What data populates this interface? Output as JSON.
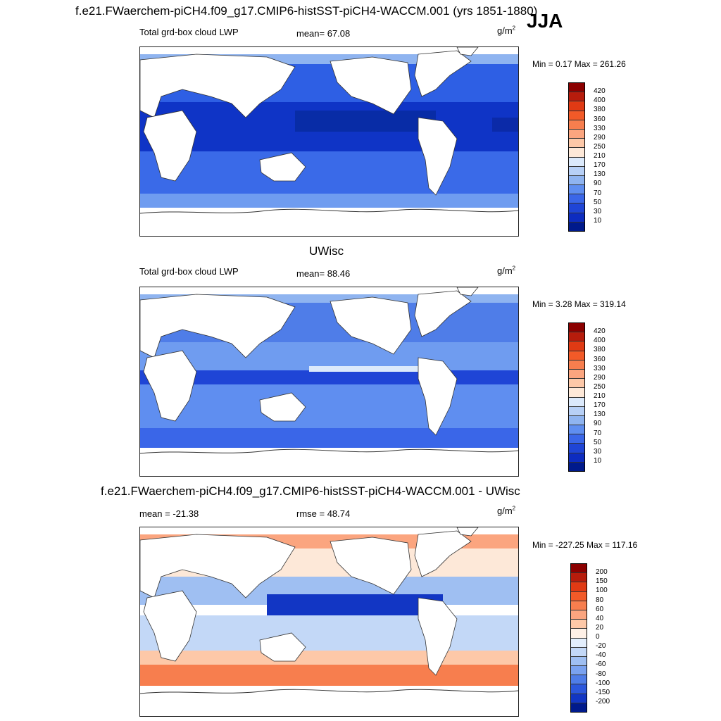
{
  "figure": {
    "main_title": "f.e21.FWaerchem-piCH4.f09_g17.CMIP6-histSST-piCH4-WACCM.001 (yrs 1851-1880)",
    "season": "JJA"
  },
  "panels": [
    {
      "id": "model",
      "center_title": "",
      "left_label": "Total grd-box cloud LWP",
      "mid_label": "mean=  67.08",
      "unit_base": "g/m",
      "unit_exp": "2",
      "minmax": "Min =   0.17 Max = 261.26",
      "colorbar": {
        "levels": [
          "420",
          "400",
          "380",
          "360",
          "330",
          "290",
          "250",
          "210",
          "170",
          "130",
          "90",
          "70",
          "50",
          "30",
          "10"
        ],
        "colors": [
          "#8b0000",
          "#b71c0c",
          "#e03a14",
          "#f25a28",
          "#f77e4e",
          "#fba57f",
          "#fdc8a8",
          "#fde8d8",
          "#dbe9fb",
          "#b7d0f6",
          "#8fb4f0",
          "#5f8ef0",
          "#3a66e8",
          "#1f45d6",
          "#0d2cc0",
          "#001a8c"
        ]
      }
    },
    {
      "id": "obs",
      "center_title": "UWisc",
      "left_label": "Total grd-box cloud LWP",
      "mid_label": "mean=  88.46",
      "unit_base": "g/m",
      "unit_exp": "2",
      "minmax": "Min =   3.28 Max = 319.14",
      "colorbar": {
        "levels": [
          "420",
          "400",
          "380",
          "360",
          "330",
          "290",
          "250",
          "210",
          "170",
          "130",
          "90",
          "70",
          "50",
          "30",
          "10"
        ],
        "colors": [
          "#8b0000",
          "#b71c0c",
          "#e03a14",
          "#f25a28",
          "#f77e4e",
          "#fba57f",
          "#fdc8a8",
          "#fde8d8",
          "#dbe9fb",
          "#b7d0f6",
          "#8fb4f0",
          "#5f8ef0",
          "#3a66e8",
          "#1f45d6",
          "#0d2cc0",
          "#001a8c"
        ]
      }
    },
    {
      "id": "diff",
      "center_title": "f.e21.FWaerchem-piCH4.f09_g17.CMIP6-histSST-piCH4-WACCM.001 - UWisc",
      "left_label": "mean = -21.38",
      "mid_label": "rmse =  48.74",
      "unit_base": "g/m",
      "unit_exp": "2",
      "minmax": "Min = -227.25 Max = 117.16",
      "colorbar": {
        "levels": [
          "200",
          "150",
          "100",
          "80",
          "60",
          "40",
          "20",
          "0",
          "-20",
          "-40",
          "-60",
          "-80",
          "-100",
          "-150",
          "-200"
        ],
        "colors": [
          "#8b0000",
          "#b71c0c",
          "#e03a14",
          "#f25a28",
          "#f77e4e",
          "#fba57f",
          "#fdc8a8",
          "#fef0e6",
          "#e3eefc",
          "#c3d8f7",
          "#9fbff2",
          "#7aa2f0",
          "#4f7de8",
          "#2c57dc",
          "#1236c4",
          "#001a8c"
        ]
      }
    }
  ]
}
